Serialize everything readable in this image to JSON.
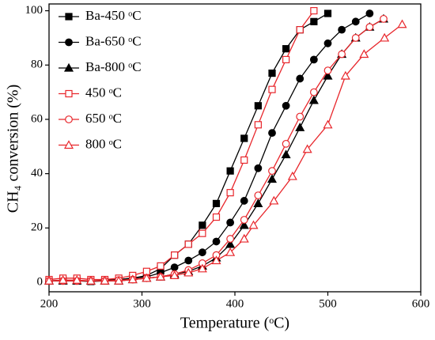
{
  "chart_data": {
    "type": "line",
    "xlabel": "Temperature (ᵒC)",
    "ylabel": "CH₄ conversion (%)",
    "xlim": [
      200,
      600
    ],
    "ylim": [
      -3.5,
      102.5
    ],
    "xticks": [
      200,
      300,
      400,
      500,
      600
    ],
    "yticks": [
      0,
      20,
      40,
      60,
      80,
      100
    ],
    "legend": "upper left",
    "series": [
      {
        "name": "Ba-450 ᵒC",
        "color": "#000000",
        "marker": "square",
        "filled": true,
        "x": [
          200,
          215,
          230,
          245,
          260,
          275,
          290,
          305,
          320,
          335,
          350,
          365,
          380,
          395,
          410,
          425,
          440,
          455,
          470,
          485,
          500
        ],
        "values": [
          0.5,
          0.8,
          0.5,
          0.3,
          0.5,
          1,
          1.5,
          2.5,
          5,
          10,
          14,
          21,
          29,
          41,
          53,
          65,
          77,
          86,
          93,
          96,
          99
        ]
      },
      {
        "name": "Ba-650 ᵒC",
        "color": "#000000",
        "marker": "circle",
        "filled": true,
        "x": [
          200,
          215,
          230,
          245,
          260,
          275,
          290,
          305,
          320,
          335,
          350,
          365,
          380,
          395,
          410,
          425,
          440,
          455,
          470,
          485,
          500,
          515,
          530,
          545
        ],
        "values": [
          0.5,
          0.5,
          0.5,
          0.5,
          0.8,
          1,
          1.5,
          2,
          3.5,
          5.5,
          8,
          11,
          15,
          22,
          30,
          42,
          55,
          65,
          75,
          82,
          88,
          93,
          96,
          99
        ]
      },
      {
        "name": "Ba-800 ᵒC",
        "color": "#000000",
        "marker": "triangle",
        "filled": true,
        "x": [
          200,
          215,
          230,
          245,
          260,
          275,
          290,
          305,
          320,
          335,
          350,
          365,
          380,
          395,
          410,
          425,
          440,
          455,
          470,
          485,
          500,
          515,
          530,
          545,
          560
        ],
        "values": [
          0.5,
          0.5,
          0.5,
          0.5,
          0.5,
          0.5,
          1,
          1.5,
          2,
          3,
          4,
          6,
          9,
          14,
          21,
          29,
          38,
          47,
          57,
          67,
          76,
          84,
          90,
          94,
          97
        ]
      },
      {
        "name": "450 ᵒC",
        "color": "#e8262b",
        "marker": "square",
        "filled": false,
        "x": [
          200,
          215,
          230,
          245,
          260,
          275,
          290,
          305,
          320,
          335,
          350,
          365,
          380,
          395,
          410,
          425,
          440,
          455,
          470,
          485
        ],
        "values": [
          1,
          1.5,
          1.5,
          1,
          1,
          1.5,
          2.5,
          4,
          6,
          10,
          14,
          18,
          24,
          33,
          45,
          58,
          71,
          82,
          93,
          100
        ]
      },
      {
        "name": "650 ᵒC",
        "color": "#e8262b",
        "marker": "circle",
        "filled": false,
        "x": [
          200,
          215,
          230,
          245,
          260,
          275,
          290,
          305,
          320,
          335,
          350,
          365,
          380,
          395,
          410,
          425,
          440,
          455,
          470,
          485,
          500,
          515,
          530,
          545,
          560
        ],
        "values": [
          0.5,
          0.5,
          0.5,
          0.5,
          0.5,
          0.8,
          1,
          1.5,
          2,
          3,
          4.5,
          7,
          10,
          16,
          23,
          32,
          41,
          51,
          61,
          70,
          78,
          84,
          90,
          94,
          97
        ]
      },
      {
        "name": "800 ᵒC",
        "color": "#e8262b",
        "marker": "triangle",
        "filled": false,
        "x": [
          200,
          215,
          230,
          245,
          260,
          275,
          290,
          305,
          320,
          335,
          350,
          365,
          380,
          395,
          410,
          420,
          442,
          462,
          478,
          500,
          519,
          539,
          561,
          580
        ],
        "values": [
          0.5,
          0.8,
          0.8,
          0.5,
          0.5,
          0.5,
          1,
          1.5,
          2,
          2.5,
          3.5,
          5,
          8,
          11,
          16,
          21,
          30,
          39,
          49,
          58,
          76,
          84,
          90,
          95
        ]
      }
    ]
  }
}
